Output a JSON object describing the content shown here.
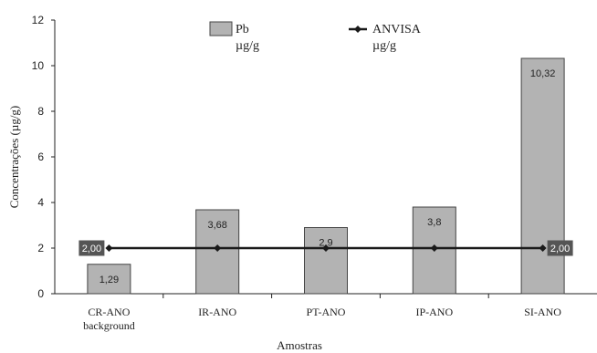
{
  "chart_data": {
    "type": "bar",
    "categories": [
      "CR-ANO\nbackground",
      "IR-ANO",
      "PT-ANO",
      "IP-ANO",
      "SI-ANO"
    ],
    "series": [
      {
        "name": "Pb\nµg/g",
        "type": "bar",
        "values": [
          1.29,
          3.68,
          2.9,
          3.8,
          10.32
        ],
        "labels": [
          "1,29",
          "3,68",
          "2,9",
          "3,8",
          "10,32"
        ],
        "color": "#b3b3b3"
      },
      {
        "name": "ANVISA\nµg/g",
        "type": "line",
        "values": [
          2,
          2,
          2,
          2,
          2
        ],
        "start_label": "2,00",
        "end_label": "2,00",
        "color": "#1a1a1a"
      }
    ],
    "xlabel": "Amostras",
    "ylabel": "Concentrações (µg/g)",
    "ylim": [
      0,
      12
    ],
    "yticks": [
      "0",
      "2",
      "4",
      "6",
      "8",
      "10",
      "12"
    ],
    "grid": false,
    "legend": "top-center"
  }
}
